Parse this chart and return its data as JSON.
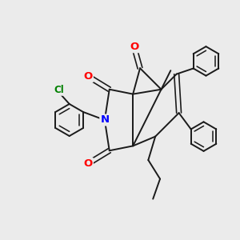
{
  "background_color": "#ebebeb",
  "atom_colors": {
    "O": "#ff0000",
    "N": "#0000ff",
    "Cl": "#008000",
    "C": "#1a1a1a"
  },
  "line_color": "#1a1a1a",
  "line_width": 1.4,
  "font_size_atom": 8.5,
  "figsize": [
    3.0,
    3.0
  ],
  "dpi": 100
}
